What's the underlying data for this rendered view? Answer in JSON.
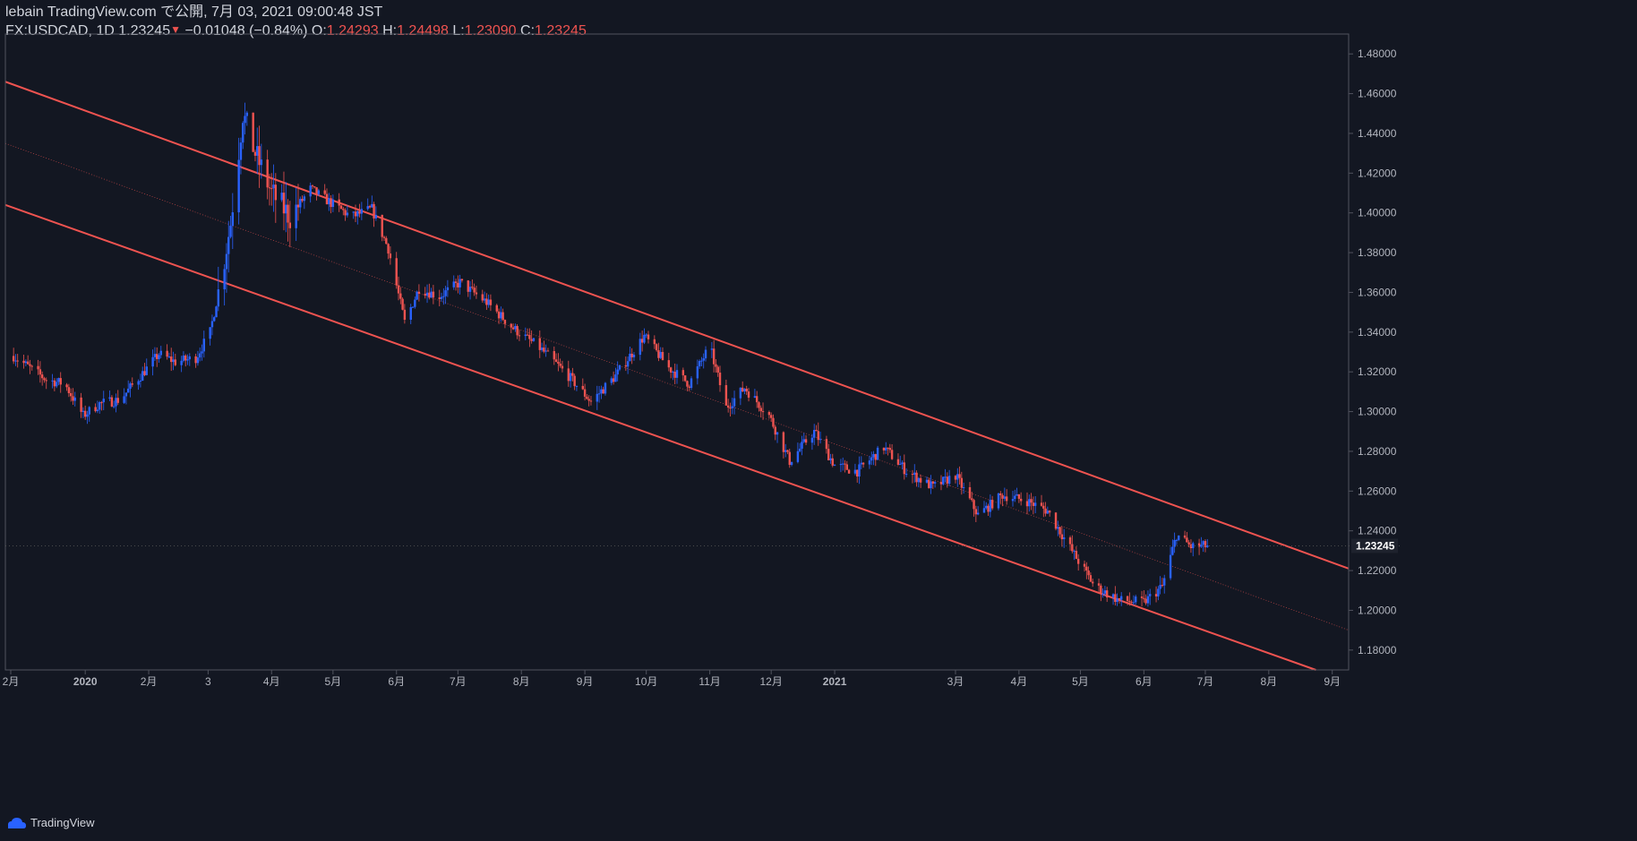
{
  "header": {
    "publisher": "lebain TradingView.com で公開, 7月 03, 2021 09:00:48 JST",
    "symbol": "FX:USDCAD, 1D",
    "last": "1.23245",
    "change_arrow": "▼",
    "change": "−0.01048 (−0.84%)",
    "o_label": "O:",
    "o_value": "1.24293",
    "h_label": "H:",
    "h_value": "1.24498",
    "l_label": "L:",
    "l_value": "1.23090",
    "c_label": "C:",
    "c_value": "1.23245"
  },
  "footer": {
    "brand": "TradingView",
    "logo_icon": "tradingview-cloud-logo-icon"
  },
  "colors": {
    "background": "#131722",
    "up": "#2962ff",
    "down": "#ef5350",
    "channel": "#ef5350",
    "text": "#d1d4dc",
    "axis_line": "#50535e"
  },
  "chart_data": {
    "type": "candlestick",
    "symbol": "FX:USDCAD",
    "interval": "1D",
    "ylim": [
      1.17,
      1.49
    ],
    "y_ticks": [
      "1.48000",
      "1.46000",
      "1.44000",
      "1.42000",
      "1.40000",
      "1.38000",
      "1.36000",
      "1.34000",
      "1.32000",
      "1.30000",
      "1.28000",
      "1.26000",
      "1.24000",
      "1.22000",
      "1.20000",
      "1.18000"
    ],
    "x_ticks": [
      {
        "label": "2月",
        "date": "2019-02-01"
      },
      {
        "label": "2020",
        "date": "2020-01-01",
        "bold": true
      },
      {
        "label": "2月",
        "date": "2020-02-01"
      },
      {
        "label": "3",
        "date": "2020-03-01"
      },
      {
        "label": "4月",
        "date": "2020-04-01"
      },
      {
        "label": "5月",
        "date": "2020-05-01"
      },
      {
        "label": "6月",
        "date": "2020-06-01"
      },
      {
        "label": "7月",
        "date": "2020-07-01"
      },
      {
        "label": "8月",
        "date": "2020-08-01"
      },
      {
        "label": "9月",
        "date": "2020-09-01"
      },
      {
        "label": "10月",
        "date": "2020-10-01"
      },
      {
        "label": "11月",
        "date": "2020-11-01"
      },
      {
        "label": "12月",
        "date": "2020-12-01"
      },
      {
        "label": "2021",
        "date": "2021-01-01",
        "bold": true
      },
      {
        "label": "3月",
        "date": "2021-03-01"
      },
      {
        "label": "4月",
        "date": "2021-04-01"
      },
      {
        "label": "5月",
        "date": "2021-05-01"
      },
      {
        "label": "6月",
        "date": "2021-06-01"
      },
      {
        "label": "7月",
        "date": "2021-07-01"
      },
      {
        "label": "8月",
        "date": "2021-08-01"
      },
      {
        "label": "9月",
        "date": "2021-09-01"
      }
    ],
    "last_price_label": "1.23245",
    "last_price": 1.23245,
    "price_path": [
      [
        "2019-11-27",
        1.328
      ],
      [
        "2019-12-05",
        1.322
      ],
      [
        "2019-12-13",
        1.316
      ],
      [
        "2019-12-22",
        1.314
      ],
      [
        "2019-12-31",
        1.298
      ],
      [
        "2020-01-08",
        1.304
      ],
      [
        "2020-01-18",
        1.306
      ],
      [
        "2020-01-28",
        1.318
      ],
      [
        "2020-02-06",
        1.329
      ],
      [
        "2020-02-14",
        1.325
      ],
      [
        "2020-02-24",
        1.327
      ],
      [
        "2020-03-02",
        1.34
      ],
      [
        "2020-03-07",
        1.365
      ],
      [
        "2020-03-12",
        1.395
      ],
      [
        "2020-03-18",
        1.45
      ],
      [
        "2020-03-24",
        1.43
      ],
      [
        "2020-04-01",
        1.41
      ],
      [
        "2020-04-10",
        1.398
      ],
      [
        "2020-04-20",
        1.412
      ],
      [
        "2020-04-30",
        1.405
      ],
      [
        "2020-05-10",
        1.398
      ],
      [
        "2020-05-20",
        1.402
      ],
      [
        "2020-05-28",
        1.382
      ],
      [
        "2020-06-05",
        1.345
      ],
      [
        "2020-06-12",
        1.362
      ],
      [
        "2020-06-22",
        1.358
      ],
      [
        "2020-07-02",
        1.365
      ],
      [
        "2020-07-15",
        1.355
      ],
      [
        "2020-07-28",
        1.342
      ],
      [
        "2020-08-10",
        1.332
      ],
      [
        "2020-08-24",
        1.318
      ],
      [
        "2020-09-04",
        1.305
      ],
      [
        "2020-09-16",
        1.318
      ],
      [
        "2020-09-30",
        1.338
      ],
      [
        "2020-10-12",
        1.322
      ],
      [
        "2020-10-22",
        1.314
      ],
      [
        "2020-11-01",
        1.333
      ],
      [
        "2020-11-09",
        1.302
      ],
      [
        "2020-11-18",
        1.312
      ],
      [
        "2020-11-30",
        1.298
      ],
      [
        "2020-12-10",
        1.275
      ],
      [
        "2020-12-22",
        1.29
      ],
      [
        "2021-01-01",
        1.273
      ],
      [
        "2021-01-12",
        1.27
      ],
      [
        "2021-01-25",
        1.282
      ],
      [
        "2021-02-05",
        1.27
      ],
      [
        "2021-02-18",
        1.262
      ],
      [
        "2021-03-01",
        1.268
      ],
      [
        "2021-03-12",
        1.248
      ],
      [
        "2021-03-24",
        1.258
      ],
      [
        "2021-04-05",
        1.255
      ],
      [
        "2021-04-15",
        1.25
      ],
      [
        "2021-04-28",
        1.228
      ],
      [
        "2021-05-08",
        1.212
      ],
      [
        "2021-05-20",
        1.205
      ],
      [
        "2021-06-01",
        1.204
      ],
      [
        "2021-06-10",
        1.212
      ],
      [
        "2021-06-17",
        1.238
      ],
      [
        "2021-06-24",
        1.232
      ],
      [
        "2021-07-02",
        1.23245
      ]
    ],
    "channel": {
      "upper": [
        [
          "2019-11-23",
          1.466
        ],
        [
          "2021-09-09",
          1.221
        ]
      ],
      "median": [
        [
          "2019-11-23",
          1.435
        ],
        [
          "2021-09-09",
          1.19
        ]
      ],
      "lower": [
        [
          "2019-11-23",
          1.404
        ],
        [
          "2021-08-24",
          1.17
        ]
      ]
    }
  }
}
